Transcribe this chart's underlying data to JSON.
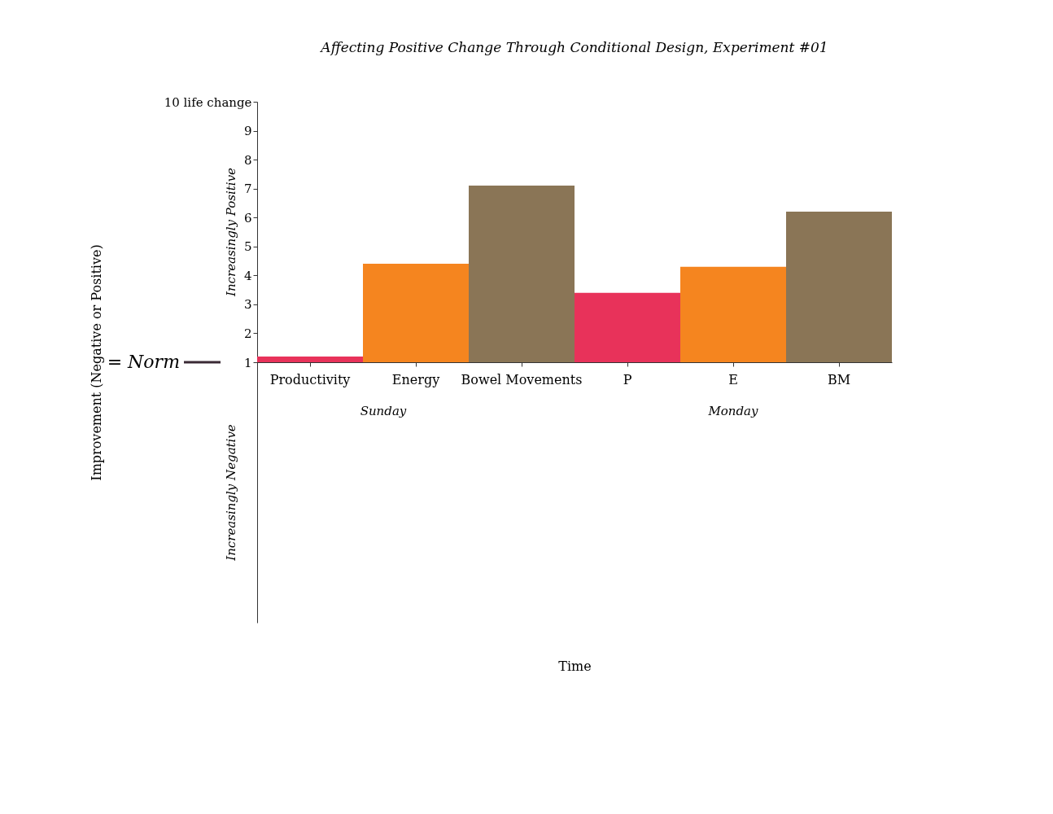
{
  "chart_data": {
    "type": "bar",
    "title": "Affecting Positive Change Through Conditional Design, Experiment #01",
    "xlabel": "Time",
    "ylabel": "Improvement (Negative or Positive)",
    "categories": [
      "Productivity",
      "Energy",
      "Bowel Movements",
      "P",
      "E",
      "BM"
    ],
    "base": [
      1,
      1,
      1,
      1,
      1,
      1
    ],
    "values": [
      0.2,
      3.4,
      6.1,
      2.4,
      3.3,
      5.2
    ],
    "colors": [
      "#e8325a",
      "#f5851f",
      "#8a7556",
      "#e8325a",
      "#f5851f",
      "#8a7556"
    ],
    "ylim": [
      -8,
      10
    ],
    "yticks": [
      1,
      2,
      3,
      4,
      5,
      6,
      7,
      8,
      9,
      {
        "value": 10,
        "label": "10 life change"
      }
    ],
    "grid": false,
    "annotations": [
      "= Norm",
      "Increasingly Positive",
      "Increasingly Negative",
      "Sunday",
      "Monday"
    ]
  }
}
